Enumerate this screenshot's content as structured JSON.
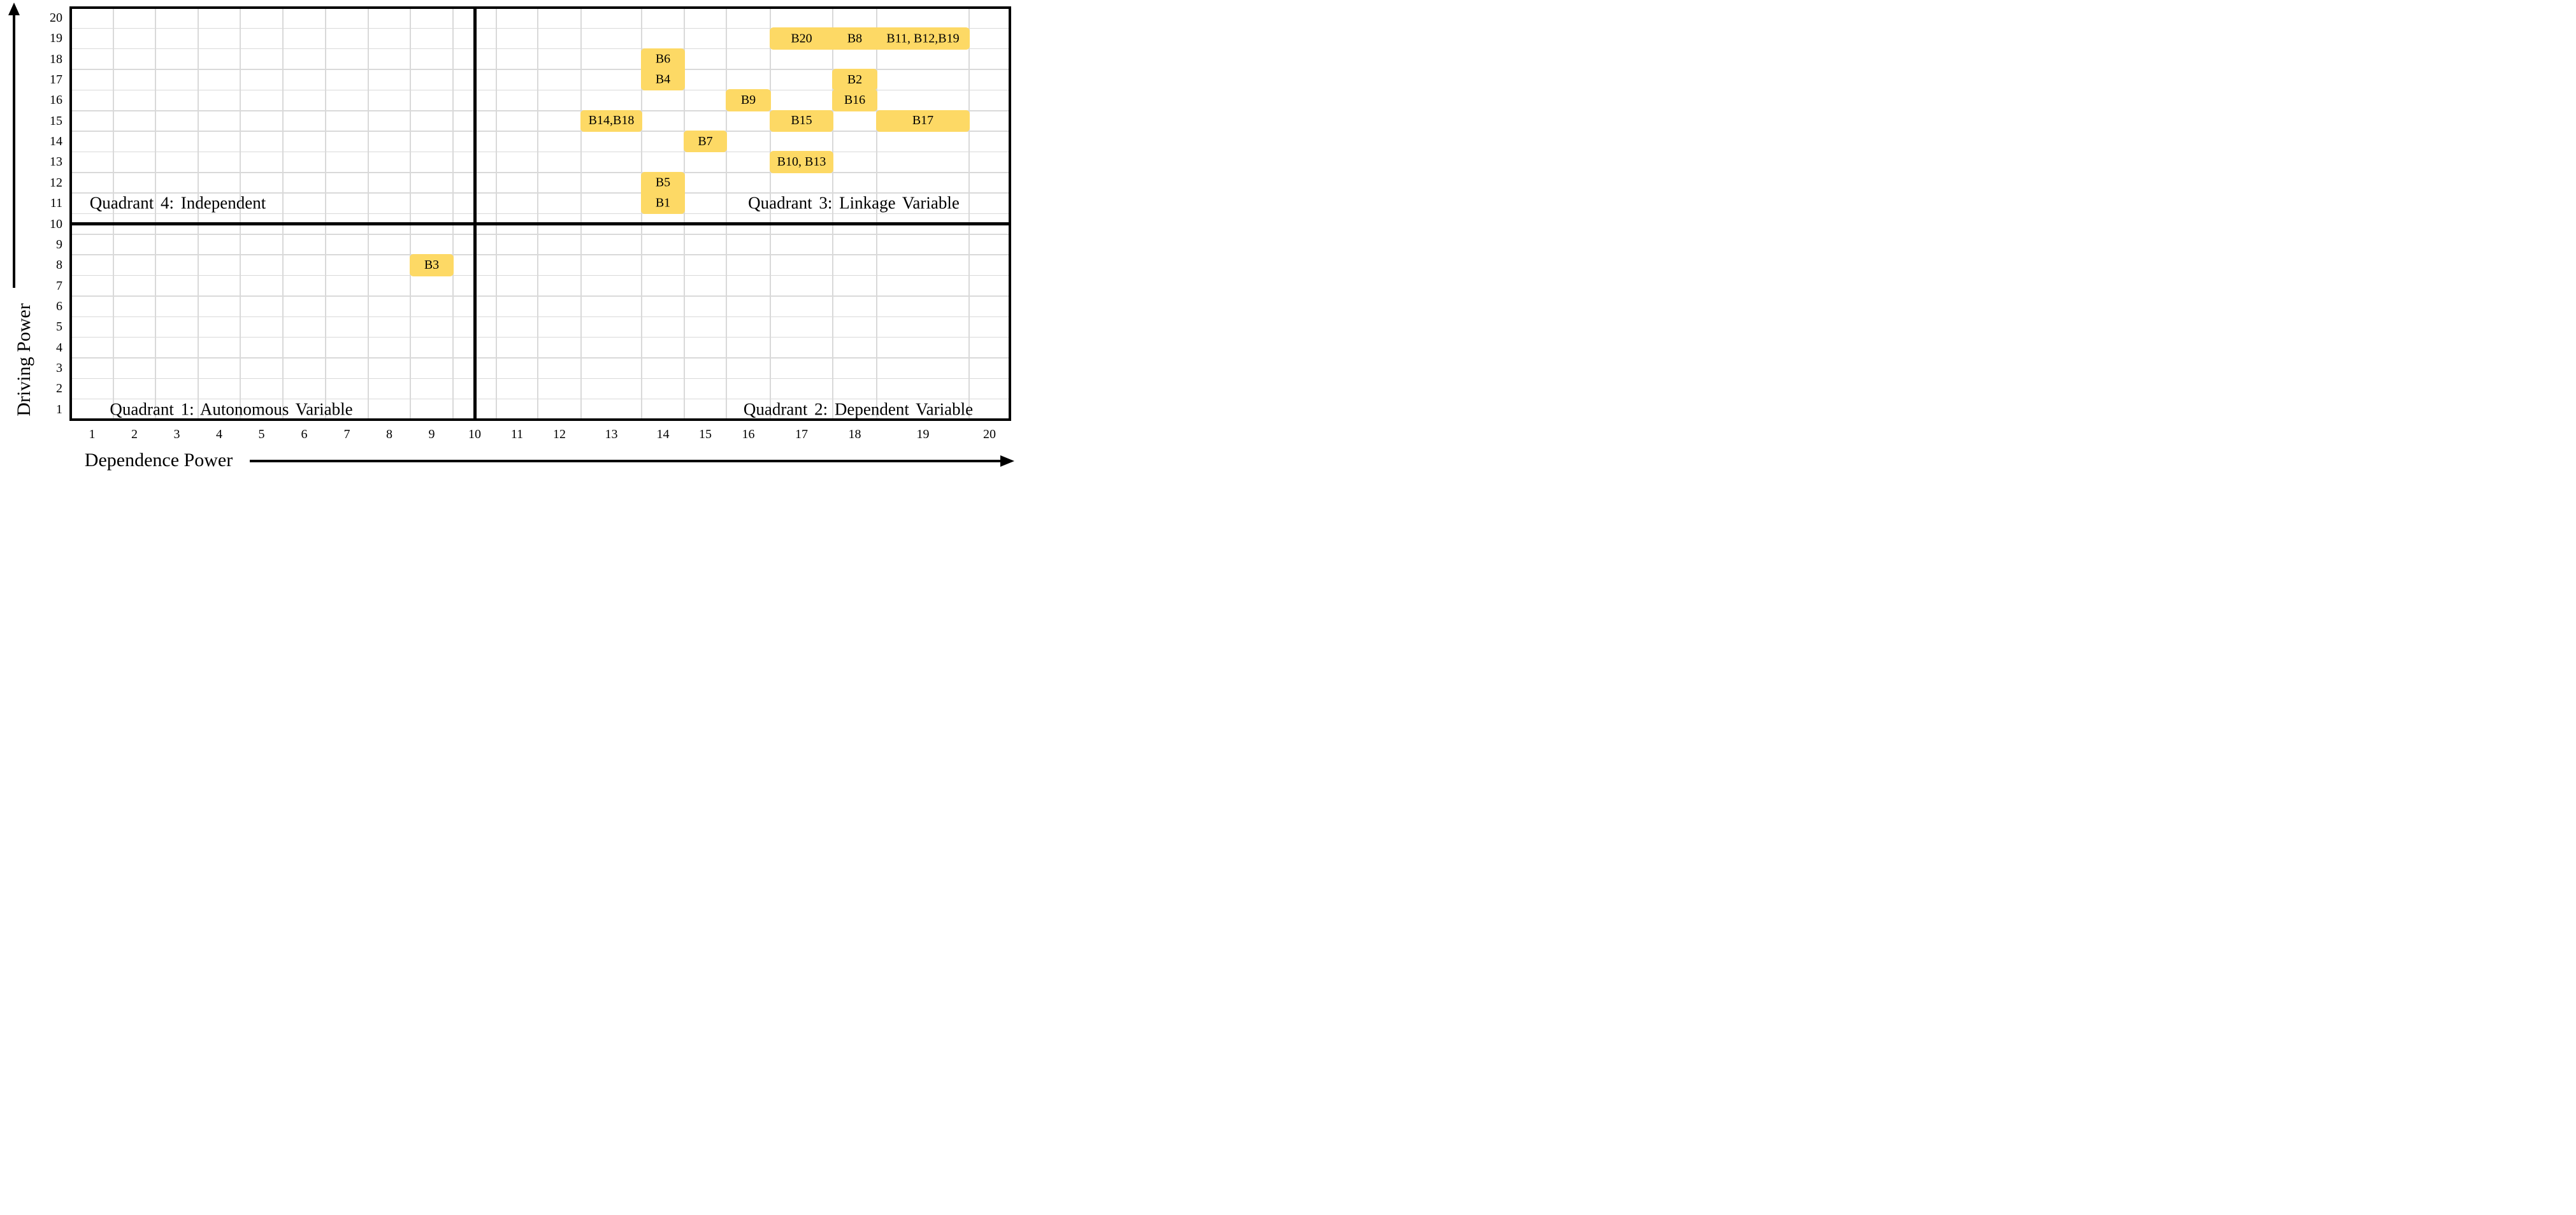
{
  "chart_data": {
    "type": "quadrant-matrix",
    "title": "",
    "xlabel": "Dependence Power",
    "ylabel": "Driving Power",
    "xlim": [
      0.5,
      20.5
    ],
    "ylim": [
      0.5,
      20.5
    ],
    "x_ticks": [
      "1",
      "2",
      "3",
      "4",
      "5",
      "6",
      "7",
      "8",
      "9",
      "10",
      "11",
      "12",
      "13",
      "14",
      "15",
      "16",
      "17",
      "18",
      "19",
      "20"
    ],
    "y_ticks": [
      "1",
      "2",
      "3",
      "4",
      "5",
      "6",
      "7",
      "8",
      "9",
      "10",
      "11",
      "12",
      "13",
      "14",
      "15",
      "16",
      "17",
      "18",
      "19",
      "20"
    ],
    "grid": true,
    "divider_x": 10,
    "divider_y": 10,
    "highlight_color": "#FDD965",
    "gridline_color": "#D9D9D9",
    "border_color": "#000000",
    "quadrant_labels": [
      {
        "key": "quadrant-1",
        "label": "Quadrant 1: Autonomous Variable",
        "position": "bottom-left"
      },
      {
        "key": "quadrant-2",
        "label": "Quadrant 2: Dependent Variable",
        "position": "bottom-right"
      },
      {
        "key": "quadrant-3",
        "label": "Quadrant 3: Linkage Variable",
        "position": "top-right"
      },
      {
        "key": "quadrant-4",
        "label": "Quadrant 4: Independent",
        "position": "top-left"
      }
    ],
    "points": [
      {
        "id": "B1",
        "x": 14,
        "y": 11
      },
      {
        "id": "B2",
        "x": 18,
        "y": 17
      },
      {
        "id": "B3",
        "x": 9,
        "y": 8
      },
      {
        "id": "B4",
        "x": 14,
        "y": 17
      },
      {
        "id": "B5",
        "x": 14,
        "y": 12
      },
      {
        "id": "B6",
        "x": 14,
        "y": 18
      },
      {
        "id": "B7",
        "x": 15,
        "y": 14
      },
      {
        "id": "B8",
        "x": 18,
        "y": 19
      },
      {
        "id": "B9",
        "x": 16,
        "y": 16
      },
      {
        "id": "B10",
        "x": 17,
        "y": 13
      },
      {
        "id": "B11",
        "x": 19,
        "y": 19
      },
      {
        "id": "B12",
        "x": 19,
        "y": 19
      },
      {
        "id": "B13",
        "x": 17,
        "y": 13
      },
      {
        "id": "B14",
        "x": 13,
        "y": 15
      },
      {
        "id": "B15",
        "x": 17,
        "y": 15
      },
      {
        "id": "B16",
        "x": 18,
        "y": 16
      },
      {
        "id": "B17",
        "x": 19,
        "y": 15
      },
      {
        "id": "B18",
        "x": 13,
        "y": 15
      },
      {
        "id": "B19",
        "x": 19,
        "y": 19
      },
      {
        "id": "B20",
        "x": 17,
        "y": 19
      }
    ],
    "highlight_blocks": [
      {
        "cols": [
          17,
          19
        ],
        "rows": [
          19,
          19
        ],
        "labels": [
          {
            "text": "B20",
            "col": 17
          },
          {
            "text": "B8",
            "col": 18
          },
          {
            "text": "B11, B12,B19",
            "col": 19
          }
        ]
      },
      {
        "cols": [
          14,
          14
        ],
        "rows": [
          17,
          18
        ],
        "labels": [
          {
            "text": "B6",
            "row": 18
          },
          {
            "text": "B4",
            "row": 17
          }
        ]
      },
      {
        "cols": [
          18,
          18
        ],
        "rows": [
          17,
          17
        ],
        "labels": [
          {
            "text": "B2"
          }
        ]
      },
      {
        "cols": [
          16,
          16
        ],
        "rows": [
          16,
          16
        ],
        "labels": [
          {
            "text": "B9"
          }
        ]
      },
      {
        "cols": [
          18,
          18
        ],
        "rows": [
          16,
          16
        ],
        "labels": [
          {
            "text": "B16"
          }
        ]
      },
      {
        "cols": [
          13,
          13
        ],
        "rows": [
          15,
          15
        ],
        "labels": [
          {
            "text": "B14,B18"
          }
        ]
      },
      {
        "cols": [
          17,
          17
        ],
        "rows": [
          15,
          15
        ],
        "labels": [
          {
            "text": "B15"
          }
        ]
      },
      {
        "cols": [
          19,
          19
        ],
        "rows": [
          15,
          15
        ],
        "labels": [
          {
            "text": "B17"
          }
        ]
      },
      {
        "cols": [
          15,
          15
        ],
        "rows": [
          14,
          14
        ],
        "labels": [
          {
            "text": "B7"
          }
        ]
      },
      {
        "cols": [
          17,
          17
        ],
        "rows": [
          13,
          13
        ],
        "labels": [
          {
            "text": "B10, B13"
          }
        ]
      },
      {
        "cols": [
          14,
          14
        ],
        "rows": [
          11,
          12
        ],
        "labels": [
          {
            "text": "B5",
            "row": 12
          },
          {
            "text": "B1",
            "row": 11
          }
        ]
      },
      {
        "cols": [
          9,
          9
        ],
        "rows": [
          8,
          8
        ],
        "labels": [
          {
            "text": "B3"
          }
        ]
      }
    ]
  }
}
